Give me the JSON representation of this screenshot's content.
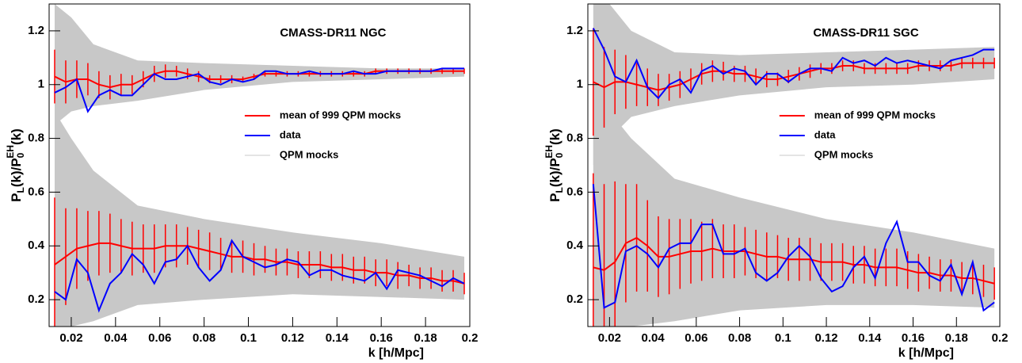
{
  "chart_data": [
    {
      "type": "line",
      "title": "CMASS-DR11 NGC",
      "xlabel": "k [h/Mpc]",
      "ylabel": [
        "P",
        "L",
        "(k)/P",
        "0",
        "EH",
        "(k)"
      ],
      "xlim": [
        0.01,
        0.2
      ],
      "ylim": [
        0.1,
        1.3
      ],
      "xticks": [
        0.02,
        0.04,
        0.06,
        0.08,
        0.1,
        0.12,
        0.14,
        0.16,
        0.18,
        0.2
      ],
      "yticks": [
        0.2,
        0.4,
        0.6,
        0.8,
        1,
        1.2
      ],
      "legend": "center-right",
      "x": [
        0.0125,
        0.0175,
        0.0225,
        0.0275,
        0.0325,
        0.0375,
        0.0425,
        0.0475,
        0.0525,
        0.0575,
        0.0625,
        0.0675,
        0.0725,
        0.0775,
        0.0825,
        0.0875,
        0.0925,
        0.0975,
        0.1025,
        0.1075,
        0.1125,
        0.1175,
        0.1225,
        0.1275,
        0.1325,
        0.1375,
        0.1425,
        0.1475,
        0.1525,
        0.1575,
        0.1625,
        0.1675,
        0.1725,
        0.1775,
        0.1825,
        0.1875,
        0.1925,
        0.1975
      ],
      "series": [
        {
          "name": "mean of 999 QPM mocks",
          "color": "#ff0000",
          "curves": [
            {
              "values": [
                1.03,
                1.01,
                1.02,
                1.02,
                1.0,
                0.99,
                1.0,
                1.0,
                1.02,
                1.04,
                1.05,
                1.05,
                1.04,
                1.03,
                1.02,
                1.02,
                1.02,
                1.02,
                1.03,
                1.04,
                1.04,
                1.04,
                1.04,
                1.04,
                1.04,
                1.04,
                1.04,
                1.04,
                1.04,
                1.05,
                1.05,
                1.05,
                1.05,
                1.05,
                1.05,
                1.05,
                1.05,
                1.05
              ],
              "errors": [
                0.1,
                0.08,
                0.07,
                0.06,
                0.05,
                0.045,
                0.04,
                0.035,
                0.03,
                0.03,
                0.025,
                0.02,
                0.02,
                0.02,
                0.015,
                0.015,
                0.015,
                0.01,
                0.01,
                0.01,
                0.01,
                0.01,
                0.01,
                0.01,
                0.01,
                0.01,
                0.01,
                0.01,
                0.01,
                0.01,
                0.01,
                0.01,
                0.01,
                0.01,
                0.01,
                0.01,
                0.01,
                0.01
              ]
            },
            {
              "values": [
                0.33,
                0.36,
                0.39,
                0.4,
                0.41,
                0.41,
                0.4,
                0.39,
                0.39,
                0.39,
                0.4,
                0.4,
                0.4,
                0.39,
                0.38,
                0.37,
                0.36,
                0.36,
                0.35,
                0.35,
                0.34,
                0.34,
                0.33,
                0.33,
                0.33,
                0.32,
                0.32,
                0.31,
                0.31,
                0.3,
                0.3,
                0.29,
                0.29,
                0.28,
                0.28,
                0.27,
                0.27,
                0.26
              ],
              "errors": [
                0.25,
                0.18,
                0.15,
                0.13,
                0.12,
                0.11,
                0.1,
                0.1,
                0.09,
                0.09,
                0.08,
                0.08,
                0.07,
                0.07,
                0.07,
                0.06,
                0.06,
                0.06,
                0.06,
                0.05,
                0.05,
                0.05,
                0.05,
                0.05,
                0.05,
                0.05,
                0.05,
                0.05,
                0.05,
                0.05,
                0.05,
                0.05,
                0.04,
                0.04,
                0.04,
                0.04,
                0.04,
                0.04
              ]
            }
          ]
        },
        {
          "name": "data",
          "color": "#0000ff",
          "curves": [
            {
              "values": [
                0.97,
                0.99,
                1.02,
                0.9,
                0.96,
                0.98,
                0.96,
                0.96,
                1.0,
                1.04,
                1.02,
                1.02,
                1.03,
                1.04,
                1.01,
                1.0,
                1.02,
                1.01,
                1.02,
                1.05,
                1.05,
                1.04,
                1.04,
                1.05,
                1.04,
                1.04,
                1.04,
                1.05,
                1.04,
                1.04,
                1.05,
                1.05,
                1.05,
                1.05,
                1.05,
                1.06,
                1.06,
                1.06
              ]
            },
            {
              "values": [
                0.23,
                0.2,
                0.35,
                0.3,
                0.16,
                0.26,
                0.3,
                0.37,
                0.33,
                0.26,
                0.34,
                0.35,
                0.4,
                0.32,
                0.27,
                0.31,
                0.42,
                0.36,
                0.34,
                0.32,
                0.33,
                0.35,
                0.34,
                0.29,
                0.31,
                0.31,
                0.29,
                0.28,
                0.27,
                0.3,
                0.24,
                0.31,
                0.3,
                0.29,
                0.27,
                0.25,
                0.28,
                0.26
              ]
            }
          ]
        },
        {
          "name": "QPM mocks",
          "color": "#c8c8c8",
          "bands": [
            {
              "x": [
                0.0125,
                0.02,
                0.03,
                0.05,
                0.08,
                0.12,
                0.16,
                0.1975
              ],
              "lower": [
                0.85,
                0.9,
                0.92,
                0.94,
                0.98,
                1.01,
                1.02,
                1.03
              ],
              "upper": [
                1.3,
                1.25,
                1.15,
                1.09,
                1.08,
                1.07,
                1.06,
                1.06
              ]
            },
            {
              "x": [
                0.0125,
                0.02,
                0.03,
                0.05,
                0.08,
                0.12,
                0.16,
                0.1975
              ],
              "lower": [
                0.1,
                0.1,
                0.12,
                0.18,
                0.2,
                0.22,
                0.21,
                0.2
              ],
              "upper": [
                0.9,
                0.8,
                0.68,
                0.55,
                0.5,
                0.45,
                0.41,
                0.36
              ]
            }
          ]
        }
      ]
    },
    {
      "type": "line",
      "title": "CMASS-DR11 SGC",
      "xlabel": "k [h/Mpc]",
      "ylabel": [
        "P",
        "L",
        "(k)/P",
        "0",
        "EH",
        "(k)"
      ],
      "xlim": [
        0.01,
        0.2
      ],
      "ylim": [
        0.1,
        1.3
      ],
      "xticks": [
        0.02,
        0.04,
        0.06,
        0.08,
        0.1,
        0.12,
        0.14,
        0.16,
        0.18,
        0.2
      ],
      "yticks": [
        0.2,
        0.4,
        0.6,
        0.8,
        1,
        1.2
      ],
      "legend": "center-right",
      "x": [
        0.0125,
        0.0175,
        0.0225,
        0.0275,
        0.0325,
        0.0375,
        0.0425,
        0.0475,
        0.0525,
        0.0575,
        0.0625,
        0.0675,
        0.0725,
        0.0775,
        0.0825,
        0.0875,
        0.0925,
        0.0975,
        0.1025,
        0.1075,
        0.1125,
        0.1175,
        0.1225,
        0.1275,
        0.1325,
        0.1375,
        0.1425,
        0.1475,
        0.1525,
        0.1575,
        0.1625,
        0.1675,
        0.1725,
        0.1775,
        0.1825,
        0.1875,
        0.1925,
        0.1975
      ],
      "series": [
        {
          "name": "mean of 999 QPM mocks",
          "color": "#ff0000",
          "curves": [
            {
              "values": [
                1.01,
                0.99,
                1.01,
                1.01,
                1.0,
                0.99,
                0.98,
                0.99,
                1.0,
                1.02,
                1.04,
                1.05,
                1.05,
                1.04,
                1.04,
                1.03,
                1.02,
                1.02,
                1.03,
                1.04,
                1.05,
                1.06,
                1.06,
                1.07,
                1.07,
                1.06,
                1.06,
                1.06,
                1.06,
                1.06,
                1.07,
                1.07,
                1.07,
                1.07,
                1.08,
                1.08,
                1.08,
                1.08
              ],
              "errors": [
                0.2,
                0.15,
                0.12,
                0.1,
                0.08,
                0.07,
                0.06,
                0.05,
                0.05,
                0.04,
                0.04,
                0.04,
                0.035,
                0.03,
                0.03,
                0.03,
                0.03,
                0.025,
                0.025,
                0.025,
                0.025,
                0.02,
                0.02,
                0.02,
                0.02,
                0.02,
                0.02,
                0.02,
                0.02,
                0.02,
                0.02,
                0.02,
                0.02,
                0.02,
                0.02,
                0.02,
                0.02,
                0.02
              ]
            },
            {
              "values": [
                0.32,
                0.31,
                0.34,
                0.41,
                0.43,
                0.4,
                0.36,
                0.36,
                0.37,
                0.38,
                0.38,
                0.39,
                0.38,
                0.38,
                0.38,
                0.37,
                0.36,
                0.36,
                0.35,
                0.35,
                0.35,
                0.34,
                0.34,
                0.34,
                0.33,
                0.33,
                0.32,
                0.32,
                0.32,
                0.31,
                0.3,
                0.3,
                0.29,
                0.29,
                0.28,
                0.28,
                0.27,
                0.26
              ],
              "errors": [
                0.35,
                0.32,
                0.3,
                0.22,
                0.2,
                0.17,
                0.15,
                0.14,
                0.13,
                0.12,
                0.11,
                0.11,
                0.1,
                0.1,
                0.09,
                0.09,
                0.09,
                0.08,
                0.08,
                0.08,
                0.08,
                0.07,
                0.07,
                0.07,
                0.07,
                0.07,
                0.07,
                0.07,
                0.07,
                0.07,
                0.07,
                0.06,
                0.06,
                0.06,
                0.06,
                0.06,
                0.06,
                0.06
              ]
            }
          ]
        },
        {
          "name": "data",
          "color": "#0000ff",
          "curves": [
            {
              "values": [
                1.21,
                1.13,
                1.03,
                1.01,
                1.09,
                0.99,
                0.95,
                1.0,
                1.02,
                0.97,
                1.05,
                1.07,
                1.04,
                1.06,
                1.05,
                1.0,
                1.04,
                1.04,
                1.01,
                1.04,
                1.06,
                1.06,
                1.05,
                1.1,
                1.08,
                1.09,
                1.07,
                1.1,
                1.08,
                1.09,
                1.08,
                1.07,
                1.06,
                1.09,
                1.1,
                1.11,
                1.13,
                1.13
              ]
            },
            {
              "values": [
                0.63,
                0.17,
                0.19,
                0.38,
                0.4,
                0.37,
                0.32,
                0.39,
                0.41,
                0.41,
                0.48,
                0.48,
                0.37,
                0.37,
                0.39,
                0.3,
                0.27,
                0.3,
                0.36,
                0.4,
                0.36,
                0.28,
                0.23,
                0.25,
                0.32,
                0.36,
                0.28,
                0.41,
                0.49,
                0.34,
                0.34,
                0.29,
                0.27,
                0.33,
                0.22,
                0.34,
                0.16,
                0.19
              ]
            }
          ]
        },
        {
          "name": "QPM mocks",
          "color": "#c8c8c8",
          "bands": [
            {
              "x": [
                0.0125,
                0.02,
                0.03,
                0.05,
                0.08,
                0.12,
                0.16,
                0.1975
              ],
              "lower": [
                0.7,
                0.8,
                0.88,
                0.92,
                0.96,
                0.99,
                1.0,
                1.02
              ],
              "upper": [
                1.3,
                1.3,
                1.2,
                1.12,
                1.11,
                1.12,
                1.13,
                1.14
              ]
            },
            {
              "x": [
                0.0125,
                0.02,
                0.03,
                0.05,
                0.08,
                0.12,
                0.16,
                0.1975
              ],
              "lower": [
                0.1,
                0.1,
                0.1,
                0.12,
                0.16,
                0.18,
                0.18,
                0.17
              ],
              "upper": [
                1.0,
                0.9,
                0.8,
                0.65,
                0.58,
                0.5,
                0.45,
                0.39
              ]
            }
          ]
        }
      ]
    }
  ]
}
